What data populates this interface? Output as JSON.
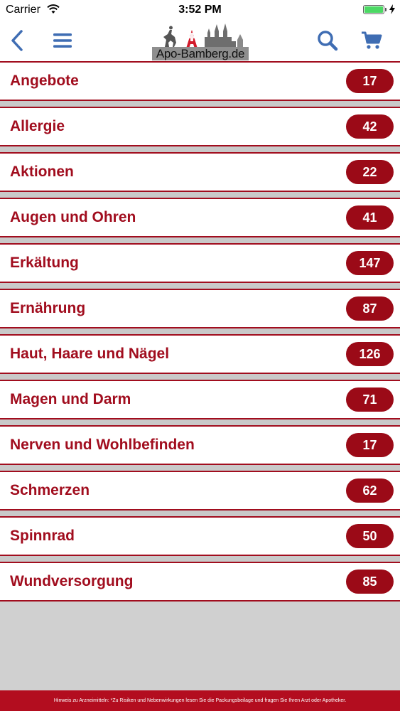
{
  "status_bar": {
    "carrier": "Carrier",
    "time": "3:52 PM",
    "battery_level": 1.0
  },
  "nav": {
    "logo_text": "Apo-Bamberg.de",
    "icons": [
      "back-icon",
      "menu-icon",
      "search-icon",
      "cart-icon"
    ]
  },
  "categories": [
    {
      "label": "Angebote",
      "count": "17"
    },
    {
      "label": "Allergie",
      "count": "42"
    },
    {
      "label": "Aktionen",
      "count": "22"
    },
    {
      "label": "Augen und Ohren",
      "count": "41"
    },
    {
      "label": "Erkältung",
      "count": "147"
    },
    {
      "label": "Ernährung",
      "count": "87"
    },
    {
      "label": "Haut, Haare und Nägel",
      "count": "126"
    },
    {
      "label": "Magen und Darm",
      "count": "71"
    },
    {
      "label": "Nerven und Wohlbefinden",
      "count": "17"
    },
    {
      "label": "Schmerzen",
      "count": "62"
    },
    {
      "label": "Spinnrad",
      "count": "50"
    },
    {
      "label": "Wundversorgung",
      "count": "85"
    }
  ],
  "footer": {
    "text": "Hinweis zu Arzneimitteln: *Zu Risiken und Nebenwirkungen lesen Sie die Packungsbeilage und fragen Sie Ihren Arzt oder Apotheker."
  },
  "colors": {
    "accent": "#a10d1e",
    "nav_icon": "#3f6db3",
    "background": "#d0d0d0"
  }
}
